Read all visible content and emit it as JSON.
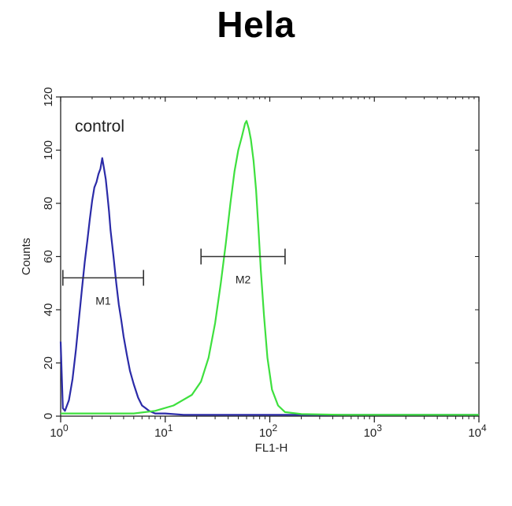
{
  "chart_data": {
    "type": "line",
    "title": "Hela",
    "xlabel": "FL1-H",
    "ylabel": "Counts",
    "x_scale": "log",
    "xlim": [
      1,
      10000
    ],
    "ylim": [
      0,
      120
    ],
    "x_ticks": [
      {
        "value": 1,
        "base": "10",
        "exp": "0"
      },
      {
        "value": 10,
        "base": "10",
        "exp": "1"
      },
      {
        "value": 100,
        "base": "10",
        "exp": "2"
      },
      {
        "value": 1000,
        "base": "10",
        "exp": "3"
      },
      {
        "value": 10000,
        "base": "10",
        "exp": "4"
      }
    ],
    "y_ticks": [
      "0",
      "20",
      "40",
      "60",
      "80",
      "100",
      "120"
    ],
    "grid": false,
    "series": [
      {
        "name": "control",
        "color": "#2b2ba8",
        "x": [
          1,
          1.05,
          1.1,
          1.2,
          1.3,
          1.4,
          1.5,
          1.6,
          1.7,
          1.8,
          1.9,
          2.0,
          2.1,
          2.2,
          2.3,
          2.4,
          2.5,
          2.6,
          2.7,
          2.8,
          2.9,
          3.0,
          3.2,
          3.4,
          3.6,
          3.8,
          4.0,
          4.3,
          4.6,
          5.0,
          5.5,
          6.0,
          6.5,
          7.0,
          8.0,
          9.0,
          10,
          15,
          30,
          100,
          1000,
          10000
        ],
        "y": [
          28,
          3,
          2,
          6,
          14,
          25,
          37,
          48,
          58,
          66,
          74,
          81,
          86,
          88,
          91,
          93,
          97,
          93,
          89,
          83,
          77,
          70,
          60,
          50,
          42,
          36,
          30,
          23,
          17,
          12,
          7,
          4,
          3,
          2,
          1,
          1,
          1,
          0.5,
          0.5,
          0.5,
          0.5,
          0.5
        ]
      },
      {
        "name": "",
        "color": "#3ee03e",
        "x": [
          1,
          2,
          5,
          8,
          12,
          18,
          22,
          26,
          30,
          34,
          38,
          42,
          46,
          50,
          54,
          58,
          60,
          63,
          66,
          70,
          74,
          78,
          82,
          88,
          95,
          105,
          120,
          140,
          200,
          500,
          1000,
          10000
        ],
        "y": [
          1,
          1,
          1,
          2,
          4,
          8,
          13,
          22,
          35,
          50,
          65,
          80,
          92,
          100,
          105,
          110,
          111,
          108,
          104,
          96,
          85,
          70,
          55,
          38,
          22,
          10,
          4,
          1.5,
          0.8,
          0.5,
          0.5,
          0.5
        ]
      }
    ],
    "annotations": [
      {
        "text": "control"
      },
      {
        "text": "M1",
        "x_start": 1.05,
        "x_end": 6.2,
        "y": 52
      },
      {
        "text": "M2",
        "x_start": 22,
        "x_end": 140,
        "y": 60
      }
    ]
  }
}
